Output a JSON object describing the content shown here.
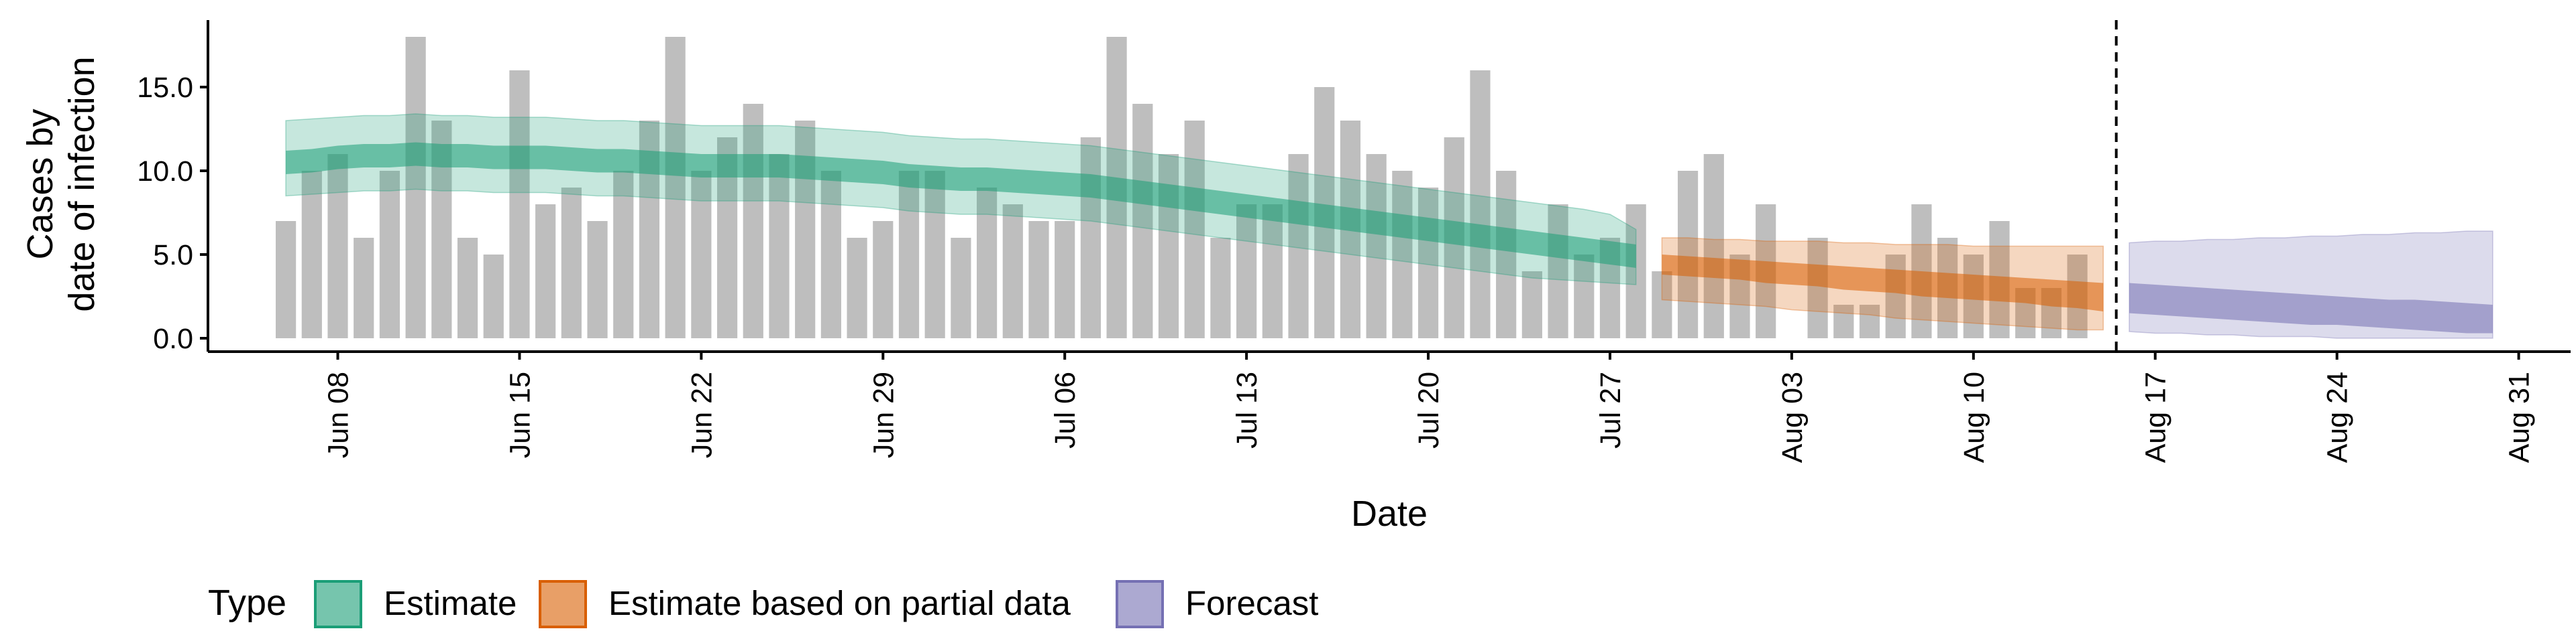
{
  "chart_data": {
    "type": "bar",
    "xlabel": "Date",
    "ylabel": [
      "Cases by",
      "date of infection"
    ],
    "ylim": [
      0,
      19
    ],
    "y_ticks": [
      0,
      5,
      10,
      15
    ],
    "y_tick_labels": [
      "0.0",
      "5.0",
      "10.0",
      "15.0"
    ],
    "x_range": [
      "2020-06-03",
      "2020-09-02"
    ],
    "x_ticks": [
      "2020-06-08",
      "2020-06-15",
      "2020-06-22",
      "2020-06-29",
      "2020-07-06",
      "2020-07-13",
      "2020-07-20",
      "2020-07-27",
      "2020-08-03",
      "2020-08-10",
      "2020-08-17",
      "2020-08-24",
      "2020-08-31"
    ],
    "x_tick_labels": [
      "Jun 08",
      "Jun 15",
      "Jun 22",
      "Jun 29",
      "Jul 06",
      "Jul 13",
      "Jul 20",
      "Jul 27",
      "Aug 03",
      "Aug 10",
      "Aug 17",
      "Aug 24",
      "Aug 31"
    ],
    "bar_dates_start": "2020-06-06",
    "bars": [
      7,
      10,
      11,
      6,
      10,
      18,
      13,
      6,
      5,
      16,
      8,
      9,
      7,
      10,
      13,
      18,
      10,
      12,
      14,
      11,
      13,
      10,
      6,
      7,
      10,
      10,
      6,
      9,
      8,
      7,
      7,
      12,
      18,
      14,
      11,
      13,
      6,
      8,
      8,
      11,
      15,
      13,
      11,
      10,
      9,
      12,
      16,
      10,
      4,
      8,
      5,
      6,
      8,
      4,
      10,
      11,
      5,
      8,
      0,
      6,
      2,
      2,
      5,
      8,
      6,
      5,
      7,
      3,
      3,
      5
    ],
    "bar_color": "#bebebe",
    "forecast_start": "2020-08-15",
    "series": [
      {
        "name": "Estimate",
        "color": "#1b9e77",
        "start": "2020-06-06",
        "median": [
          10.5,
          10.6,
          10.8,
          10.9,
          10.9,
          11.0,
          10.9,
          10.9,
          10.8,
          10.8,
          10.8,
          10.7,
          10.6,
          10.6,
          10.5,
          10.4,
          10.3,
          10.3,
          10.3,
          10.3,
          10.2,
          10.1,
          10.0,
          9.9,
          9.7,
          9.6,
          9.5,
          9.5,
          9.4,
          9.3,
          9.2,
          9.1,
          8.9,
          8.7,
          8.5,
          8.3,
          8.1,
          7.9,
          7.7,
          7.5,
          7.3,
          7.1,
          6.9,
          6.7,
          6.5,
          6.3,
          6.1,
          5.9,
          5.7,
          5.5,
          5.3,
          5.1,
          4.9
        ],
        "inner": [
          [
            9.8,
            11.2
          ],
          [
            9.9,
            11.3
          ],
          [
            10.1,
            11.5
          ],
          [
            10.2,
            11.6
          ],
          [
            10.2,
            11.6
          ],
          [
            10.3,
            11.7
          ],
          [
            10.2,
            11.6
          ],
          [
            10.2,
            11.6
          ],
          [
            10.1,
            11.5
          ],
          [
            10.1,
            11.5
          ],
          [
            10.1,
            11.5
          ],
          [
            10.0,
            11.4
          ],
          [
            9.9,
            11.3
          ],
          [
            9.9,
            11.3
          ],
          [
            9.8,
            11.2
          ],
          [
            9.7,
            11.1
          ],
          [
            9.6,
            11.0
          ],
          [
            9.6,
            11.0
          ],
          [
            9.6,
            11.0
          ],
          [
            9.6,
            11.0
          ],
          [
            9.5,
            10.9
          ],
          [
            9.4,
            10.8
          ],
          [
            9.3,
            10.7
          ],
          [
            9.2,
            10.6
          ],
          [
            9.0,
            10.4
          ],
          [
            8.9,
            10.3
          ],
          [
            8.8,
            10.2
          ],
          [
            8.8,
            10.2
          ],
          [
            8.7,
            10.1
          ],
          [
            8.6,
            10.0
          ],
          [
            8.5,
            9.9
          ],
          [
            8.4,
            9.8
          ],
          [
            8.2,
            9.6
          ],
          [
            8.0,
            9.4
          ],
          [
            7.8,
            9.2
          ],
          [
            7.6,
            9.0
          ],
          [
            7.4,
            8.8
          ],
          [
            7.2,
            8.6
          ],
          [
            7.0,
            8.4
          ],
          [
            6.8,
            8.2
          ],
          [
            6.6,
            8.0
          ],
          [
            6.4,
            7.8
          ],
          [
            6.2,
            7.6
          ],
          [
            6.0,
            7.4
          ],
          [
            5.8,
            7.2
          ],
          [
            5.6,
            7.0
          ],
          [
            5.4,
            6.8
          ],
          [
            5.2,
            6.6
          ],
          [
            5.0,
            6.4
          ],
          [
            4.8,
            6.2
          ],
          [
            4.6,
            6.0
          ],
          [
            4.4,
            5.8
          ],
          [
            4.2,
            5.6
          ]
        ],
        "outer": [
          [
            8.5,
            13.0
          ],
          [
            8.6,
            13.1
          ],
          [
            8.7,
            13.2
          ],
          [
            8.8,
            13.3
          ],
          [
            8.8,
            13.3
          ],
          [
            8.9,
            13.4
          ],
          [
            8.8,
            13.3
          ],
          [
            8.8,
            13.3
          ],
          [
            8.7,
            13.2
          ],
          [
            8.7,
            13.2
          ],
          [
            8.7,
            13.2
          ],
          [
            8.6,
            13.1
          ],
          [
            8.5,
            13.0
          ],
          [
            8.5,
            13.0
          ],
          [
            8.4,
            12.9
          ],
          [
            8.3,
            12.8
          ],
          [
            8.2,
            12.7
          ],
          [
            8.2,
            12.7
          ],
          [
            8.2,
            12.7
          ],
          [
            8.2,
            12.7
          ],
          [
            8.1,
            12.6
          ],
          [
            8.0,
            12.5
          ],
          [
            7.9,
            12.4
          ],
          [
            7.8,
            12.3
          ],
          [
            7.6,
            12.1
          ],
          [
            7.5,
            12.0
          ],
          [
            7.4,
            11.9
          ],
          [
            7.4,
            11.9
          ],
          [
            7.3,
            11.8
          ],
          [
            7.2,
            11.7
          ],
          [
            7.1,
            11.6
          ],
          [
            7.0,
            11.5
          ],
          [
            6.8,
            11.3
          ],
          [
            6.6,
            11.1
          ],
          [
            6.4,
            10.9
          ],
          [
            6.2,
            10.7
          ],
          [
            6.0,
            10.5
          ],
          [
            5.8,
            10.3
          ],
          [
            5.6,
            10.1
          ],
          [
            5.4,
            9.9
          ],
          [
            5.2,
            9.7
          ],
          [
            5.0,
            9.5
          ],
          [
            4.8,
            9.3
          ],
          [
            4.6,
            9.1
          ],
          [
            4.4,
            8.9
          ],
          [
            4.2,
            8.7
          ],
          [
            4.0,
            8.5
          ],
          [
            3.8,
            8.3
          ],
          [
            3.6,
            8.1
          ],
          [
            3.5,
            7.9
          ],
          [
            3.4,
            7.7
          ],
          [
            3.3,
            7.4
          ],
          [
            3.2,
            6.5
          ]
        ]
      },
      {
        "name": "Estimate based on partial data",
        "color": "#d95f02",
        "start": "2020-07-29",
        "median": [
          4.4,
          4.3,
          4.2,
          4.1,
          4.0,
          3.9,
          3.8,
          3.7,
          3.6,
          3.5,
          3.4,
          3.3,
          3.2,
          3.1,
          3.0,
          2.9,
          2.8,
          2.7
        ],
        "inner": [
          [
            3.8,
            5.0
          ],
          [
            3.7,
            4.9
          ],
          [
            3.6,
            4.8
          ],
          [
            3.5,
            4.7
          ],
          [
            3.3,
            4.6
          ],
          [
            3.2,
            4.5
          ],
          [
            3.1,
            4.4
          ],
          [
            2.9,
            4.3
          ],
          [
            2.8,
            4.2
          ],
          [
            2.7,
            4.1
          ],
          [
            2.5,
            4.0
          ],
          [
            2.4,
            3.9
          ],
          [
            2.3,
            3.8
          ],
          [
            2.2,
            3.7
          ],
          [
            2.1,
            3.6
          ],
          [
            1.9,
            3.5
          ],
          [
            1.8,
            3.4
          ],
          [
            1.6,
            3.3
          ]
        ],
        "outer": [
          [
            2.3,
            6.0
          ],
          [
            2.2,
            6.0
          ],
          [
            2.1,
            5.9
          ],
          [
            2.0,
            5.9
          ],
          [
            1.9,
            5.8
          ],
          [
            1.7,
            5.8
          ],
          [
            1.6,
            5.8
          ],
          [
            1.5,
            5.7
          ],
          [
            1.4,
            5.7
          ],
          [
            1.2,
            5.6
          ],
          [
            1.1,
            5.6
          ],
          [
            1.0,
            5.6
          ],
          [
            0.9,
            5.5
          ],
          [
            0.8,
            5.5
          ],
          [
            0.7,
            5.5
          ],
          [
            0.6,
            5.5
          ],
          [
            0.5,
            5.5
          ],
          [
            0.5,
            5.5
          ]
        ]
      },
      {
        "name": "Forecast",
        "color": "#7570b3",
        "start": "2020-08-16",
        "median": [
          2.6,
          2.5,
          2.4,
          2.4,
          2.3,
          2.3,
          2.2,
          2.2,
          2.1,
          2.1,
          2.0,
          2.0,
          1.9,
          1.9,
          1.8
        ],
        "inner": [
          [
            1.5,
            3.3
          ],
          [
            1.4,
            3.2
          ],
          [
            1.3,
            3.1
          ],
          [
            1.2,
            3.0
          ],
          [
            1.1,
            2.9
          ],
          [
            1.0,
            2.8
          ],
          [
            0.9,
            2.7
          ],
          [
            0.8,
            2.6
          ],
          [
            0.8,
            2.5
          ],
          [
            0.7,
            2.4
          ],
          [
            0.6,
            2.3
          ],
          [
            0.5,
            2.3
          ],
          [
            0.4,
            2.2
          ],
          [
            0.3,
            2.1
          ],
          [
            0.3,
            2.0
          ]
        ],
        "outer": [
          [
            0.4,
            5.7
          ],
          [
            0.3,
            5.8
          ],
          [
            0.3,
            5.8
          ],
          [
            0.2,
            5.9
          ],
          [
            0.2,
            5.9
          ],
          [
            0.1,
            6.0
          ],
          [
            0.1,
            6.0
          ],
          [
            0.1,
            6.1
          ],
          [
            0.0,
            6.1
          ],
          [
            0.0,
            6.2
          ],
          [
            0.0,
            6.2
          ],
          [
            0.0,
            6.3
          ],
          [
            0.0,
            6.3
          ],
          [
            0.0,
            6.4
          ],
          [
            0.0,
            6.4
          ]
        ]
      }
    ],
    "legend": {
      "title": "Type",
      "position": "bottom",
      "entries": [
        "Estimate",
        "Estimate based on partial data",
        "Forecast"
      ]
    }
  }
}
